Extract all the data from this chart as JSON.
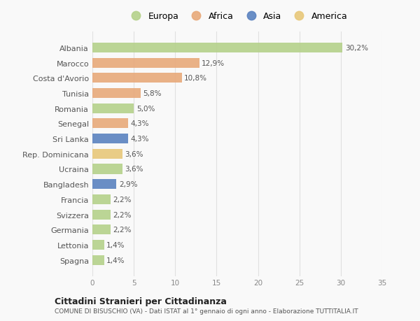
{
  "countries": [
    "Albania",
    "Marocco",
    "Costa d'Avorio",
    "Tunisia",
    "Romania",
    "Senegal",
    "Sri Lanka",
    "Rep. Dominicana",
    "Ucraina",
    "Bangladesh",
    "Francia",
    "Svizzera",
    "Germania",
    "Lettonia",
    "Spagna"
  ],
  "values": [
    30.2,
    12.9,
    10.8,
    5.8,
    5.0,
    4.3,
    4.3,
    3.6,
    3.6,
    2.9,
    2.2,
    2.2,
    2.2,
    1.4,
    1.4
  ],
  "continents": [
    "Europa",
    "Africa",
    "Africa",
    "Africa",
    "Europa",
    "Africa",
    "Asia",
    "America",
    "Europa",
    "Asia",
    "Europa",
    "Europa",
    "Europa",
    "Europa",
    "Europa"
  ],
  "colors": {
    "Europa": "#b5d18a",
    "Africa": "#e8a97a",
    "Asia": "#5b82c0",
    "America": "#e8c87a"
  },
  "xlim": [
    0,
    35
  ],
  "xticks": [
    0,
    5,
    10,
    15,
    20,
    25,
    30,
    35
  ],
  "title": "Cittadini Stranieri per Cittadinanza",
  "subtitle": "COMUNE DI BISUSCHIO (VA) - Dati ISTAT al 1° gennaio di ogni anno - Elaborazione TUTTITALIA.IT",
  "background_color": "#f9f9f9",
  "grid_color": "#e0e0e0",
  "legend_order": [
    "Europa",
    "Africa",
    "Asia",
    "America"
  ]
}
